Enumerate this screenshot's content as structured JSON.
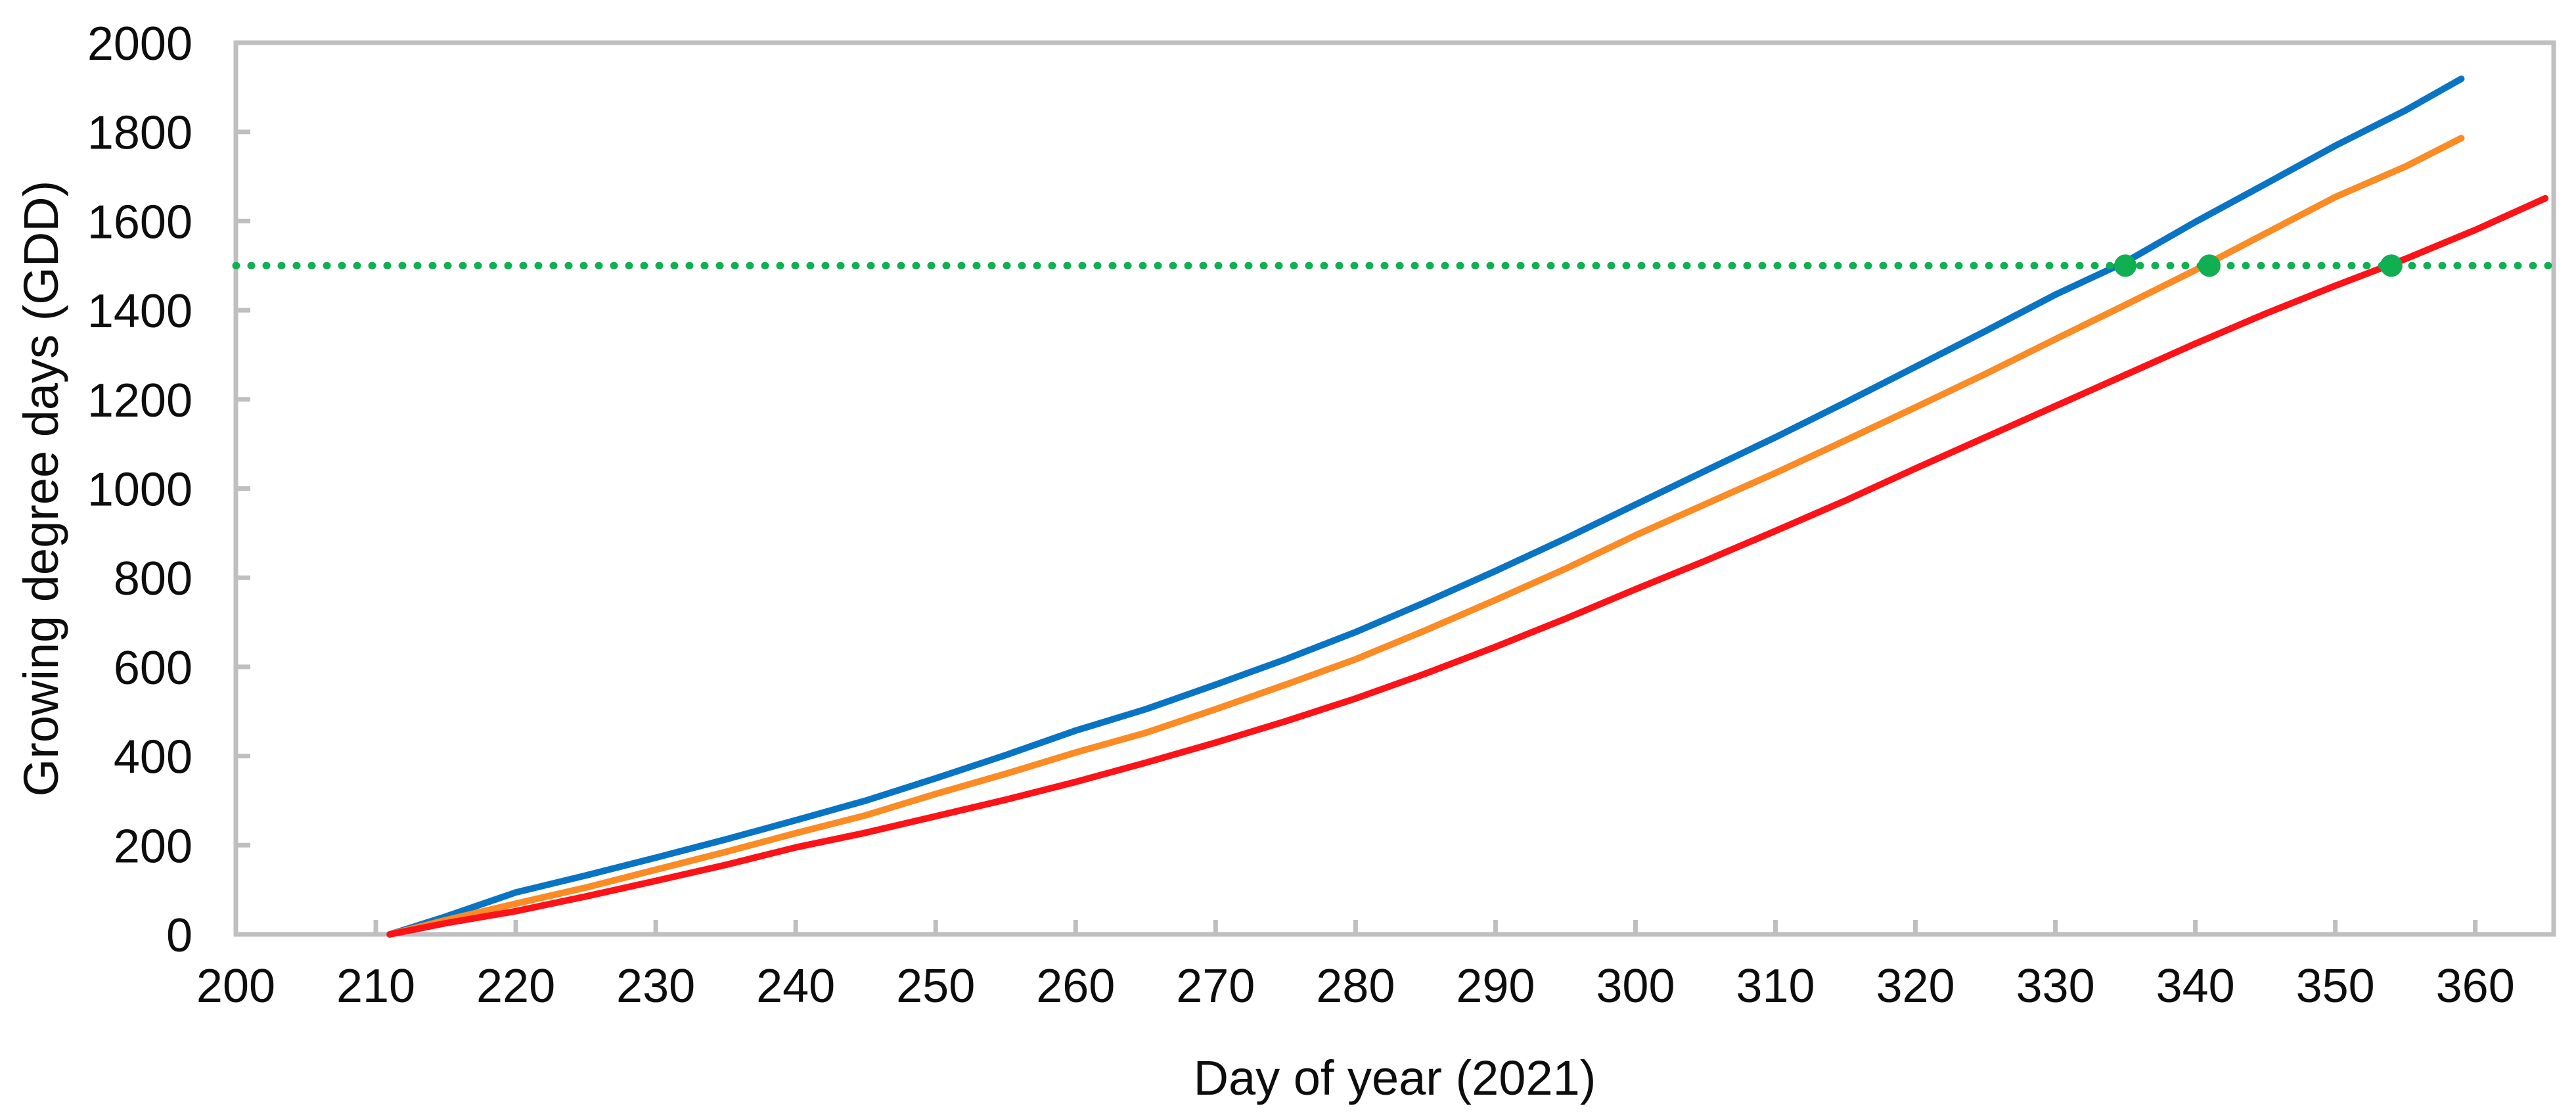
{
  "chart_data": {
    "type": "line",
    "title": "",
    "xlabel": "Day of year (2021)",
    "ylabel": "Growing degree days (GDD)",
    "xlim": [
      200,
      365.6
    ],
    "ylim": [
      0,
      2000
    ],
    "x_ticks": [
      200,
      210,
      220,
      230,
      240,
      250,
      260,
      270,
      280,
      290,
      300,
      310,
      320,
      330,
      340,
      350,
      360
    ],
    "y_ticks": [
      0,
      200,
      400,
      600,
      800,
      1000,
      1200,
      1400,
      1600,
      1800,
      2000
    ],
    "grid": false,
    "legend": "none",
    "series": [
      {
        "name": "blue-curve",
        "color": "#0A74C4",
        "x": [
          211,
          215,
          220,
          225,
          230,
          235,
          240,
          245,
          250,
          255,
          260,
          265,
          270,
          275,
          280,
          285,
          290,
          295,
          300,
          305,
          310,
          315,
          320,
          325,
          330,
          335,
          340,
          345,
          350,
          355,
          359
        ],
        "y": [
          0,
          40,
          94,
          132,
          172,
          213,
          256,
          300,
          350,
          402,
          457,
          505,
          560,
          617,
          678,
          745,
          815,
          888,
          964,
          1040,
          1115,
          1193,
          1273,
          1353,
          1435,
          1508,
          1598,
          1683,
          1769,
          1848,
          1919
        ]
      },
      {
        "name": "orange-curve",
        "color": "#FB8B24",
        "x": [
          211,
          215,
          220,
          225,
          230,
          235,
          240,
          245,
          250,
          255,
          260,
          265,
          270,
          275,
          280,
          285,
          290,
          295,
          300,
          305,
          310,
          315,
          320,
          325,
          330,
          335,
          340,
          345,
          350,
          355,
          359
        ],
        "y": [
          0,
          32,
          69,
          105,
          145,
          185,
          227,
          267,
          315,
          360,
          408,
          452,
          505,
          560,
          617,
          682,
          750,
          820,
          895,
          965,
          1035,
          1108,
          1182,
          1257,
          1335,
          1412,
          1490,
          1572,
          1654,
          1722,
          1786
        ]
      },
      {
        "name": "red-curve",
        "color": "#FB1318",
        "x": [
          211,
          215,
          220,
          225,
          230,
          235,
          240,
          245,
          250,
          255,
          260,
          265,
          270,
          275,
          280,
          285,
          290,
          295,
          300,
          305,
          310,
          315,
          320,
          325,
          330,
          335,
          340,
          345,
          350,
          355,
          359,
          360,
          365
        ],
        "y": [
          0,
          25,
          52,
          85,
          120,
          156,
          195,
          228,
          265,
          302,
          342,
          385,
          430,
          478,
          529,
          585,
          645,
          708,
          774,
          838,
          905,
          973,
          1045,
          1115,
          1185,
          1255,
          1325,
          1392,
          1455,
          1515,
          1567,
          1580,
          1651
        ]
      }
    ],
    "reference_line": {
      "value": 1500,
      "style": "dotted",
      "color": "#0FAF52"
    },
    "markers": {
      "color": "#0FAF52",
      "gdd": 1500,
      "days": [
        335,
        341,
        354
      ]
    },
    "axis_color": "#BFBFBF",
    "text_color": "#0d0d0d"
  }
}
